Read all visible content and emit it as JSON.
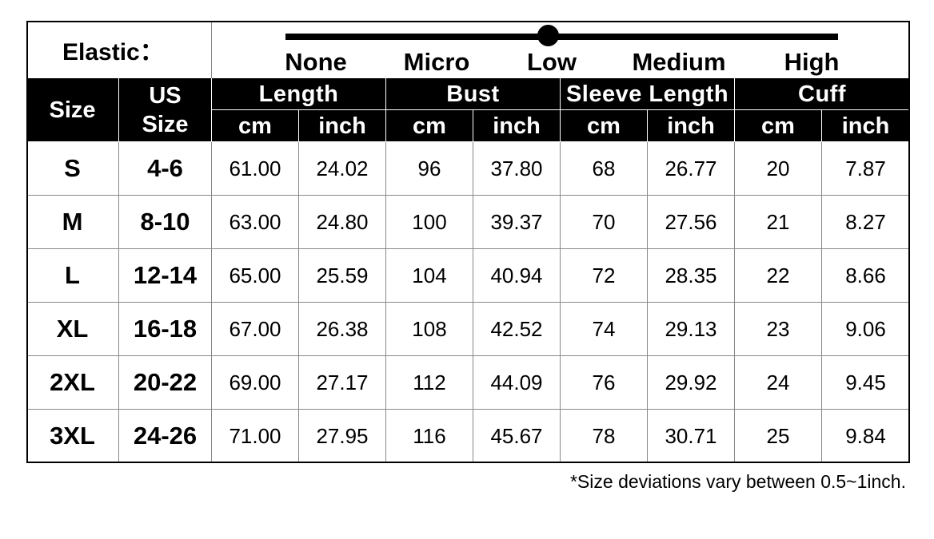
{
  "elastic": {
    "label": "Elastic：",
    "levels": [
      "None",
      "Micro",
      "Low",
      "Medium",
      "High"
    ]
  },
  "table": {
    "size_header": "Size",
    "us_size_header": "US Size",
    "groups": [
      {
        "name": "Length",
        "units": [
          "cm",
          "inch"
        ]
      },
      {
        "name": "Bust",
        "units": [
          "cm",
          "inch"
        ]
      },
      {
        "name": "Sleeve Length",
        "units": [
          "cm",
          "inch"
        ]
      },
      {
        "name": "Cuff",
        "units": [
          "cm",
          "inch"
        ]
      }
    ],
    "rows": [
      [
        "S",
        "4-6",
        "61.00",
        "24.02",
        "96",
        "37.80",
        "68",
        "26.77",
        "20",
        "7.87"
      ],
      [
        "M",
        "8-10",
        "63.00",
        "24.80",
        "100",
        "39.37",
        "70",
        "27.56",
        "21",
        "8.27"
      ],
      [
        "L",
        "12-14",
        "65.00",
        "25.59",
        "104",
        "40.94",
        "72",
        "28.35",
        "22",
        "8.66"
      ],
      [
        "XL",
        "16-18",
        "67.00",
        "26.38",
        "108",
        "42.52",
        "74",
        "29.13",
        "23",
        "9.06"
      ],
      [
        "2XL",
        "20-22",
        "69.00",
        "27.17",
        "112",
        "44.09",
        "76",
        "29.92",
        "24",
        "9.45"
      ],
      [
        "3XL",
        "24-26",
        "71.00",
        "27.95",
        "116",
        "45.67",
        "78",
        "30.71",
        "25",
        "9.84"
      ]
    ]
  },
  "footnote": "*Size deviations vary between 0.5~1inch."
}
